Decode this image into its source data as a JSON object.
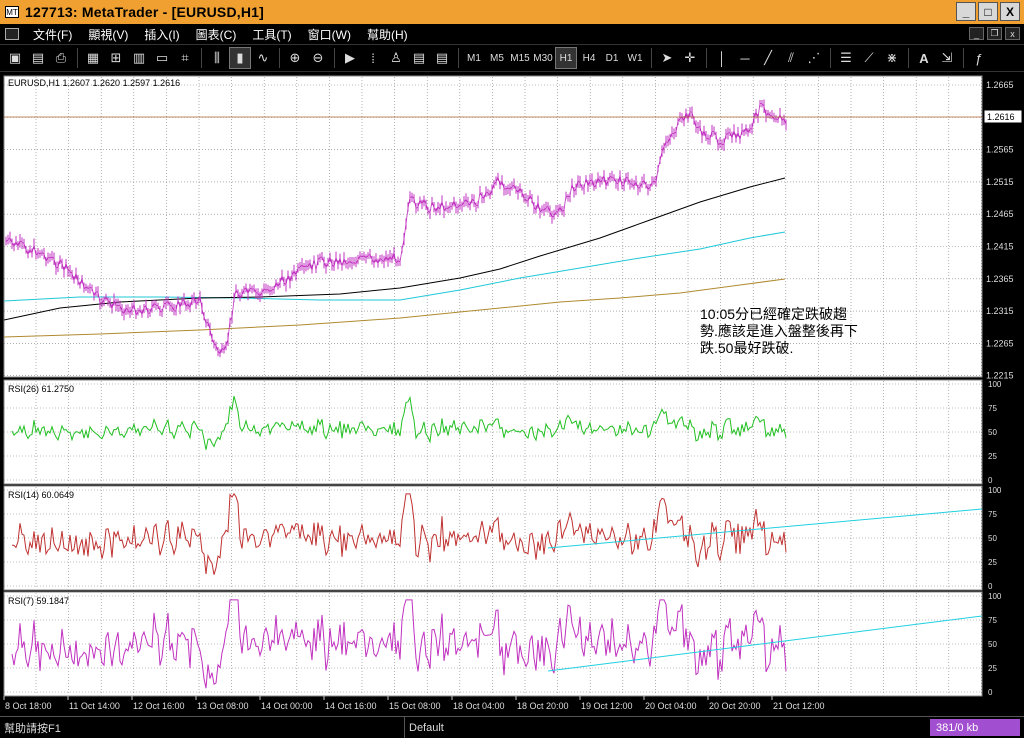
{
  "window": {
    "title": "127713: MetaTrader - [EURUSD,H1]",
    "buttons": {
      "minimize": "_",
      "maximize": "□",
      "close": "X"
    }
  },
  "menu": [
    "文件(F)",
    "顯視(V)",
    "插入(I)",
    "圖表(C)",
    "工具(T)",
    "窗口(W)",
    "幫助(H)"
  ],
  "toolbar": {
    "timeframes": [
      "M1",
      "M5",
      "M15",
      "M30",
      "H1",
      "H4",
      "D1",
      "W1"
    ],
    "selected_timeframe": "H1"
  },
  "chart": {
    "main_label": "EURUSD,H1  1.2607 1.2620 1.2597 1.2616",
    "current_price": "1.2616",
    "price_ticks": [
      "1.2665",
      "1.2615",
      "1.2565",
      "1.2515",
      "1.2465",
      "1.2415",
      "1.2365",
      "1.2315",
      "1.2265",
      "1.2215"
    ],
    "annotation": [
      "10:05分已經確定跌破趨",
      "勢.應該是進入盤整後再下",
      "跌.50最好跌破."
    ],
    "x_labels": [
      "8 Oct 18:00",
      "11 Oct 14:00",
      "12 Oct 16:00",
      "13 Oct 08:00",
      "14 Oct 00:00",
      "14 Oct 16:00",
      "15 Oct 08:00",
      "18 Oct 04:00",
      "18 Oct 20:00",
      "19 Oct 12:00",
      "20 Oct 04:00",
      "20 Oct 20:00",
      "21 Oct 12:00"
    ],
    "colors": {
      "price": "#c030c0",
      "ma_fast": "#000000",
      "ma_mid": "#1fc8d8",
      "ma_slow": "#b08a30",
      "grid": "#808080",
      "bg": "#ffffff",
      "rsi26": "#20c020",
      "rsi14": "#c03030",
      "rsi7": "#c030c0",
      "trendline": "#20d0e0"
    }
  },
  "indicators": [
    {
      "label": "RSI(26)  61.2750",
      "levels": [
        "100",
        "75",
        "50",
        "25",
        "0"
      ]
    },
    {
      "label": "RSI(14)  60.0649",
      "levels": [
        "100",
        "75",
        "50",
        "25",
        "0"
      ]
    },
    {
      "label": "RSI(7)  59.1847",
      "levels": [
        "100",
        "75",
        "50",
        "25",
        "0"
      ]
    }
  ],
  "status": {
    "help": "幫助請按F1",
    "profile": "Default",
    "traffic": "381/0 kb"
  }
}
